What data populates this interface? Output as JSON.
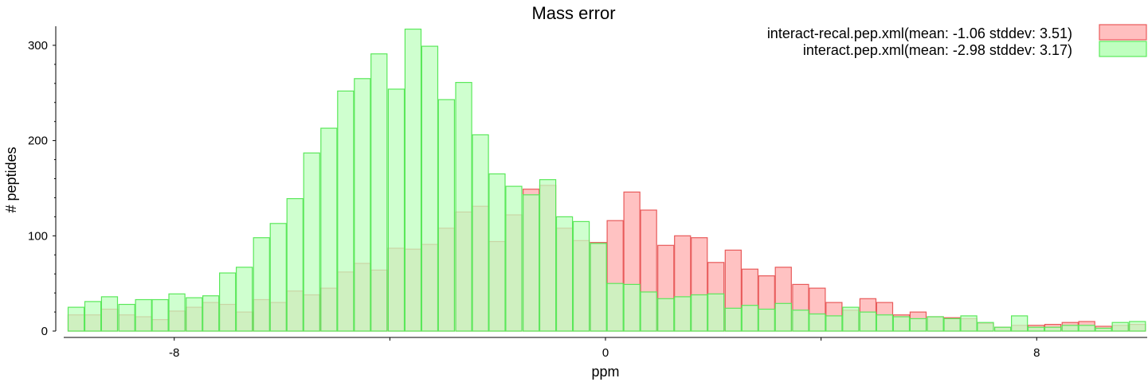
{
  "chart_data": {
    "type": "bar",
    "title": "Mass error",
    "xlabel": "ppm",
    "ylabel": "# peptides",
    "xlim": [
      -10.05,
      10.05
    ],
    "ylim": [
      0,
      320
    ],
    "x_tick_values": [
      -8,
      -4,
      0,
      4,
      8
    ],
    "x_tick_labels": [
      "-8",
      "",
      "0",
      "",
      "8"
    ],
    "y_tick_values": [
      0,
      100,
      200,
      300
    ],
    "y_tick_labels": [
      "0",
      "100",
      "200",
      "300"
    ],
    "bin_width": 0.3125,
    "legend_position": "top-right",
    "bin_centers": [
      -9.82,
      -9.51,
      -9.2,
      -8.88,
      -8.57,
      -8.26,
      -7.95,
      -7.63,
      -7.32,
      -7.01,
      -6.7,
      -6.38,
      -6.07,
      -5.76,
      -5.45,
      -5.13,
      -4.82,
      -4.51,
      -4.2,
      -3.88,
      -3.57,
      -3.26,
      -2.95,
      -2.63,
      -2.32,
      -2.01,
      -1.7,
      -1.38,
      -1.07,
      -0.76,
      -0.45,
      -0.13,
      0.18,
      0.49,
      0.8,
      1.12,
      1.43,
      1.74,
      2.05,
      2.37,
      2.68,
      2.99,
      3.3,
      3.62,
      3.93,
      4.24,
      4.55,
      4.87,
      5.18,
      5.49,
      5.8,
      6.12,
      6.43,
      6.74,
      7.05,
      7.37,
      7.68,
      7.99,
      8.3,
      8.62,
      8.93,
      9.24,
      9.55,
      9.87
    ],
    "series": [
      {
        "name": "interact-recal.pep.xml(mean: -1.06 stddev: 3.51)",
        "fill": "#ffbfbf",
        "stroke": "#e85a5a",
        "values": [
          17,
          17,
          23,
          17,
          15,
          12,
          21,
          25,
          30,
          28,
          20,
          33,
          30,
          42,
          38,
          45,
          62,
          71,
          64,
          87,
          86,
          91,
          108,
          125,
          131,
          94,
          122,
          149,
          153,
          108,
          95,
          93,
          116,
          146,
          127,
          90,
          100,
          98,
          72,
          85,
          65,
          58,
          67,
          49,
          45,
          30,
          22,
          34,
          30,
          17,
          20,
          15,
          14,
          13,
          8,
          4,
          6,
          6,
          7,
          9,
          10,
          5,
          6,
          7
        ]
      },
      {
        "name": "interact.pep.xml(mean: -2.98 stddev: 3.17)",
        "fill": "#bfffbf",
        "stroke": "#5ae85a",
        "values": [
          25,
          31,
          36,
          28,
          33,
          33,
          39,
          35,
          37,
          61,
          67,
          98,
          113,
          139,
          187,
          213,
          252,
          265,
          291,
          254,
          317,
          299,
          243,
          261,
          206,
          165,
          152,
          143,
          159,
          120,
          115,
          92,
          50,
          49,
          41,
          34,
          36,
          38,
          39,
          24,
          27,
          23,
          29,
          22,
          18,
          16,
          25,
          20,
          17,
          15,
          13,
          15,
          13,
          16,
          9,
          4,
          16,
          4,
          4,
          6,
          6,
          3,
          9,
          10
        ]
      }
    ]
  }
}
